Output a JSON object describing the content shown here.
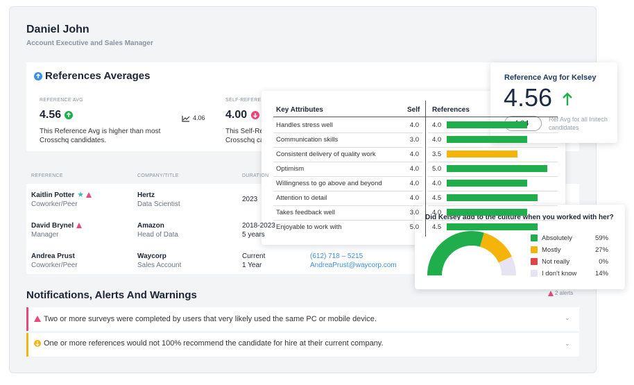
{
  "header": {
    "name": "Daniel John",
    "title": "Account Executive and Sales Manager"
  },
  "averages": {
    "title": "References Averages",
    "reference": {
      "label": "REFERENCE AVG",
      "value": "4.56",
      "trend": "4.06",
      "note": "This Reference Avg is higher than most Crosschq candidates."
    },
    "self": {
      "label": "SELF-REFERENCE AVG",
      "value": "4.00",
      "note": "This Self-Reference Avg is lower than most Crosschq candidates."
    }
  },
  "references": {
    "headers": [
      "REFERENCE",
      "COMPANY/TITLE",
      "DURATION"
    ],
    "rows": [
      {
        "name": "Kaitlin Potter",
        "relation": "Coworker/Peer",
        "company": "Hertz",
        "position": "Data Scientist",
        "duration": "2023",
        "length": ""
      },
      {
        "name": "David Brynel",
        "relation": "Manager",
        "company": "Amazon",
        "position": "Head of Data",
        "duration": "2018-2023",
        "length": "5 years"
      },
      {
        "name": "Andrea Prust",
        "relation": "Coworker/Peer",
        "company": "Waycorp",
        "position": "Sales Account",
        "duration": "Current",
        "length": "1 Year",
        "phone": "(612) 718 – 5215",
        "email": "AndreaPrust@waycorp.com"
      }
    ]
  },
  "notifications": {
    "title": "Notifications, Alerts And Warnings",
    "count": "2 alerts",
    "alerts": [
      "Two or more surveys were completed by users that very likely used the same PC or mobile device.",
      "One or more references would not 100% recommend the candidate for hire at their current company."
    ]
  },
  "attributes": {
    "headers": [
      "Key Attributes",
      "Self",
      "References"
    ],
    "max": 5,
    "rows": [
      {
        "name": "Handles stress well",
        "self": "4.0",
        "reference": 4,
        "reference_label": "4.0",
        "color": "#1fae4b"
      },
      {
        "name": "Communication skills",
        "self": "3.0",
        "reference": 4,
        "reference_label": "4.0",
        "color": "#1fae4b"
      },
      {
        "name": "Consistent delivery of quality work",
        "self": "4.0",
        "reference": 3.5,
        "reference_label": "3.5",
        "color": "#f5b40a"
      },
      {
        "name": "Optimism",
        "self": "4.0",
        "reference": 5,
        "reference_label": "5.0",
        "color": "#1fae4b"
      },
      {
        "name": "Willingness to go above and beyond",
        "self": "4.0",
        "reference": 4,
        "reference_label": "4.0",
        "color": "#1fae4b"
      },
      {
        "name": "Attention to detail",
        "self": "4.0",
        "reference": 4.5,
        "reference_label": "4.5",
        "color": "#1fae4b"
      },
      {
        "name": "Takes feedback well",
        "self": "3.0",
        "reference": 4,
        "reference_label": "4.0",
        "color": "#1fae4b"
      },
      {
        "name": "Enjoyable to work with",
        "self": "5.0",
        "reference": 4.5,
        "reference_label": "4.5",
        "color": "#1fae4b"
      }
    ]
  },
  "kelsey": {
    "title": "Reference Avg for Kelsey",
    "value": "4.56",
    "all_avg": "4.04",
    "all_label": "Ref Avg for all Initech candidates"
  },
  "chart_data": {
    "type": "gauge",
    "title": "Did Kelsey add to the culture when you worked with her?",
    "categories": [
      "Absolutely",
      "Mostly",
      "Not really",
      "I don't know"
    ],
    "values": [
      59,
      27,
      0,
      14
    ],
    "value_labels": [
      "59%",
      "27%",
      "0%",
      "14%"
    ],
    "colors": [
      "#1fae4b",
      "#f5b40a",
      "#e04545",
      "#e6e4f2"
    ]
  }
}
